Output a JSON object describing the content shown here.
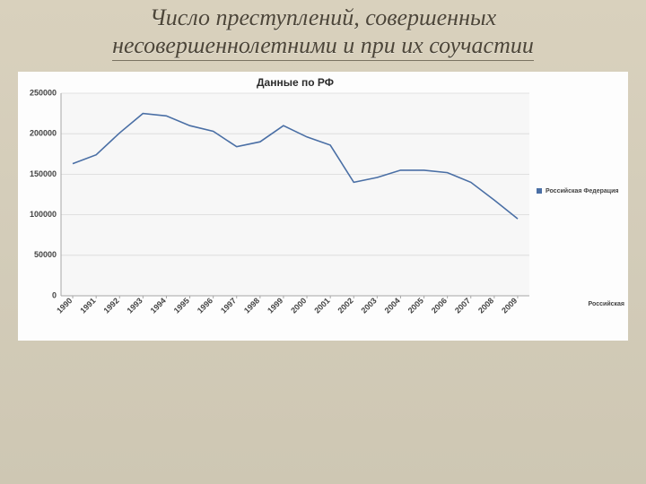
{
  "title_line1": "Число преступлений, совершенных",
  "title_line2": "несовершеннолетними и при их соучастии",
  "chart": {
    "type": "line",
    "title": "Данные по РФ",
    "title_fontsize": 12,
    "background_color": "#fdfdfd",
    "plot_background_color": "#f7f7f7",
    "grid_color": "#d9d9d9",
    "axis_color": "#a6a6a6",
    "y_axis": {
      "min": 0,
      "max": 250000,
      "tick_step": 50000,
      "ticks": [
        0,
        50000,
        100000,
        150000,
        200000,
        250000
      ],
      "label_fontsize": 9,
      "label_fontweight": "bold"
    },
    "x_axis": {
      "categories": [
        "1990",
        "1991",
        "1992",
        "1993",
        "1994",
        "1995",
        "1996",
        "1997",
        "1998",
        "1999",
        "2000",
        "2001",
        "2002",
        "2003",
        "2004",
        "2005",
        "2006",
        "2007",
        "2008",
        "2009"
      ],
      "label_fontsize": 9,
      "label_fontweight": "bold",
      "label_rotation": -45
    },
    "series": [
      {
        "name": "Российская Федерация",
        "color": "#4a6fa5",
        "line_width": 1.6,
        "values": [
          163000,
          174000,
          201000,
          225000,
          222000,
          210000,
          203000,
          184000,
          190000,
          210000,
          196000,
          186000,
          140000,
          146000,
          155000,
          155000,
          152000,
          140000,
          118000,
          95000
        ]
      }
    ],
    "legend": {
      "position": "right",
      "fontsize": 7,
      "marker_size": 6
    },
    "trailing_label": "Российская"
  },
  "slide": {
    "background_gradient_top": "#d9d1bd",
    "background_gradient_bottom": "#cec7b3",
    "title_color": "#4d4639"
  }
}
